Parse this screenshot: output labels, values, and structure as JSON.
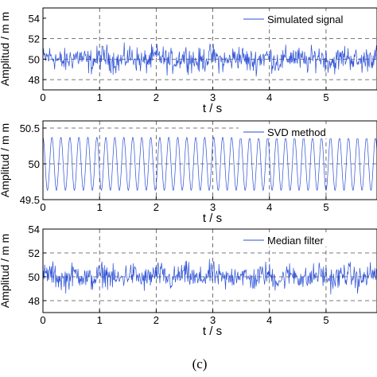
{
  "caption": "(c)",
  "colors": {
    "signal": "#2b4fd6",
    "axis": "#000000",
    "grid": "#4d4d4d"
  },
  "chart_data": [
    {
      "type": "line",
      "legend": "Simulated signal",
      "xlabel": "t / s",
      "ylabel": "Amplitud / m m",
      "xlim": [
        0,
        5.9
      ],
      "ylim": [
        47,
        55
      ],
      "xticks": [
        "0",
        "1",
        "2",
        "3",
        "4",
        "5"
      ],
      "yticks": [
        "48",
        "50",
        "52",
        "54"
      ],
      "dashed_y": [
        48,
        50,
        52
      ],
      "series": [
        {
          "name": "Simulated signal",
          "center": 50,
          "amplitude": 1.8,
          "kind": "noisy",
          "samples": 600
        }
      ]
    },
    {
      "type": "line",
      "legend": "SVD method",
      "xlabel": "t / s",
      "ylabel": "Amplitud / m m",
      "xlim": [
        0,
        5.9
      ],
      "ylim": [
        49.5,
        50.6
      ],
      "xticks": [
        "0",
        "1",
        "2",
        "3",
        "4",
        "5"
      ],
      "yticks": [
        "49.5",
        "50",
        "50.5"
      ],
      "dashed_y": [
        50,
        50.5
      ],
      "series": [
        {
          "name": "SVD method",
          "center": 50,
          "amplitude": 0.37,
          "kind": "sine",
          "frequency": 6.3,
          "samples": 900
        }
      ]
    },
    {
      "type": "line",
      "legend": "Median filter",
      "xlabel": "t / s",
      "ylabel": "Amplitud / m m",
      "xlim": [
        0,
        5.9
      ],
      "ylim": [
        47,
        54
      ],
      "xticks": [
        "0",
        "1",
        "2",
        "3",
        "4",
        "5"
      ],
      "yticks": [
        "48",
        "50",
        "52",
        "54"
      ],
      "dashed_y": [
        48,
        50,
        52
      ],
      "series": [
        {
          "name": "Median filter",
          "center": 50,
          "amplitude": 1.5,
          "kind": "noisy",
          "samples": 600
        }
      ]
    }
  ]
}
